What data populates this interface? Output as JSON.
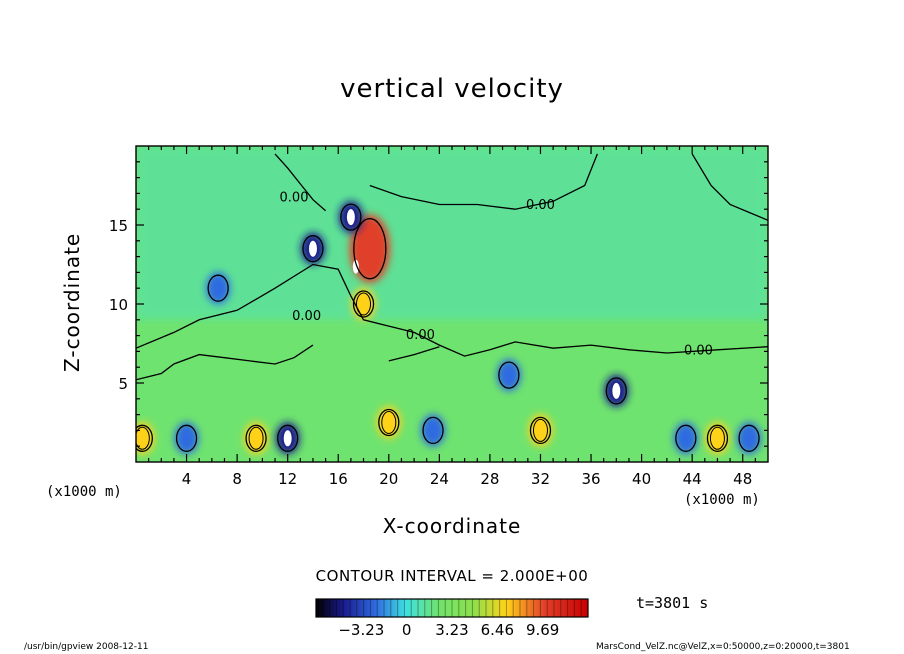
{
  "chart_data": {
    "type": "heatmap",
    "title": "vertical velocity",
    "xlabel": "X-coordinate",
    "ylabel": "Z-coordinate",
    "x_unit_left": "(x1000 m)",
    "x_unit_right": "(x1000 m)",
    "xlim": [
      0,
      50
    ],
    "ylim": [
      0,
      20
    ],
    "xticks": [
      4,
      8,
      12,
      16,
      20,
      24,
      28,
      32,
      36,
      40,
      44,
      48
    ],
    "xtick_labels": [
      "4",
      "8",
      "12",
      "16",
      "20",
      "24",
      "28",
      "32",
      "36",
      "40",
      "44",
      "48"
    ],
    "yticks": [
      5,
      10,
      15
    ],
    "ytick_labels": [
      "5",
      "10",
      "15"
    ],
    "contour_labels": [
      {
        "text": "0.00",
        "x": 12.5,
        "y": 16.5
      },
      {
        "text": "0.00",
        "x": 32.0,
        "y": 16.0
      },
      {
        "text": "0.00",
        "x": 13.5,
        "y": 9.0
      },
      {
        "text": "0.00",
        "x": 22.5,
        "y": 7.8
      },
      {
        "text": "0.00",
        "x": 44.5,
        "y": 6.8
      }
    ],
    "contour_interval": "CONTOUR INTERVAL = 2.000E+00",
    "colorbar": {
      "ticks": [
        -3.23,
        0,
        3.23,
        6.46,
        9.69
      ],
      "tick_labels": [
        "−3.23",
        "0",
        "3.23",
        "6.46",
        "9.69"
      ],
      "range": [
        -6.46,
        12.92
      ]
    },
    "time_label": "t=3801 s",
    "colors": {
      "background": "#6fe36f",
      "low": "#1a1a8c",
      "negative": "#2f6be0",
      "near_zero": "#3fe0e0",
      "positive": "#8ee04a",
      "high": "#ffd21a",
      "extreme": "#e0402a",
      "peak": "#ffffff"
    },
    "features": [
      {
        "kind": "updraft",
        "x": 18.5,
        "z": 13.5,
        "value": 9.0
      },
      {
        "kind": "updraft",
        "x": 18.0,
        "z": 10.0,
        "value": 6.0
      },
      {
        "kind": "updraft",
        "x": 20.0,
        "z": 2.5,
        "value": 6.5
      },
      {
        "kind": "updraft",
        "x": 32.0,
        "z": 2.0,
        "value": 6.0
      },
      {
        "kind": "updraft",
        "x": 46.0,
        "z": 1.5,
        "value": 6.5
      },
      {
        "kind": "updraft",
        "x": 9.5,
        "z": 1.5,
        "value": 5.0
      },
      {
        "kind": "updraft",
        "x": 0.5,
        "z": 1.5,
        "value": 5.0
      },
      {
        "kind": "downdraft",
        "x": 17.0,
        "z": 15.5,
        "value": -5.0
      },
      {
        "kind": "downdraft",
        "x": 14.0,
        "z": 13.5,
        "value": -4.0
      },
      {
        "kind": "downdraft",
        "x": 12.0,
        "z": 1.5,
        "value": -5.0
      },
      {
        "kind": "downdraft",
        "x": 6.5,
        "z": 11.0,
        "value": -3.5
      },
      {
        "kind": "downdraft",
        "x": 38.0,
        "z": 4.5,
        "value": -4.5
      },
      {
        "kind": "downdraft",
        "x": 23.5,
        "z": 2.0,
        "value": -3.5
      },
      {
        "kind": "downdraft",
        "x": 43.5,
        "z": 1.5,
        "value": -3.5
      },
      {
        "kind": "downdraft",
        "x": 4.0,
        "z": 1.5,
        "value": -3.0
      },
      {
        "kind": "downdraft",
        "x": 29.5,
        "z": 5.5,
        "value": -3.0
      },
      {
        "kind": "downdraft",
        "x": 48.5,
        "z": 1.5,
        "value": -3.0
      }
    ]
  },
  "footer": {
    "left": "/usr/bin/gpview   2008-12-11",
    "right": "MarsCond_VelZ.nc@VelZ,x=0:50000,z=0:20000,t=3801"
  }
}
